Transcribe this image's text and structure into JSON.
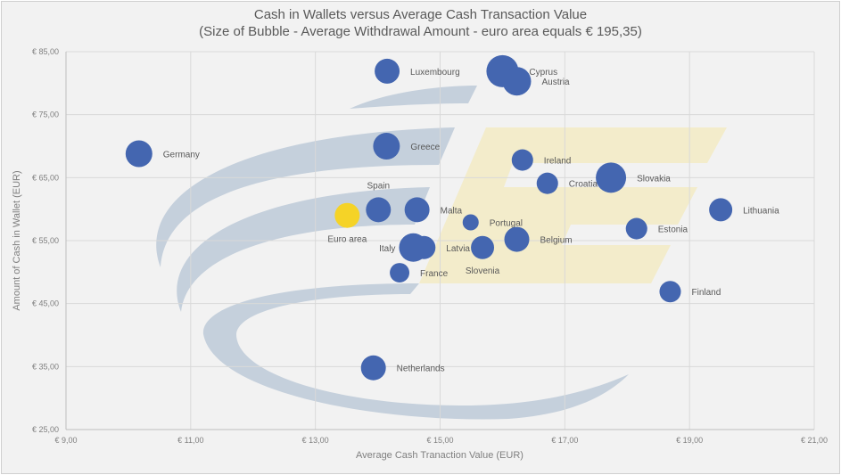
{
  "chart_data": {
    "type": "bubble",
    "title": "Cash in Wallets versus Average Cash Transaction Value",
    "subtitle": "(Size of Bubble - Average Withdrawal Amount - euro area equals € 195,35)",
    "xlabel": "Average Cash Tranaction Value (EUR)",
    "ylabel": "Amount of Cash in Wallet (EUR)",
    "xlim": [
      9,
      21
    ],
    "ylim": [
      25,
      85
    ],
    "xticks": [
      9,
      11,
      13,
      15,
      17,
      19,
      21
    ],
    "xtick_labels": [
      "€ 9,00",
      "€ 11,00",
      "€ 13,00",
      "€ 15,00",
      "€ 17,00",
      "€ 19,00",
      "€ 21,00"
    ],
    "yticks": [
      25,
      35,
      45,
      55,
      65,
      75,
      85
    ],
    "ytick_labels": [
      "€ 25,00",
      "€ 35,00",
      "€ 45,00",
      "€ 55,00",
      "€ 65,00",
      "€ 75,00",
      "€ 85,00"
    ],
    "grid": true,
    "colors": {
      "country": "#4466b0",
      "euro_area": "#f5d327",
      "watermark_blue": "#c5d0dc",
      "watermark_yellow": "#f3eccb"
    },
    "points": [
      {
        "name": "Luxembourg",
        "x": 14.15,
        "y": 81.9,
        "size": 195,
        "label_pos": "right"
      },
      {
        "name": "Cyprus",
        "x": 16.0,
        "y": 81.9,
        "size": 323,
        "label_pos": "right"
      },
      {
        "name": "Austria",
        "x": 16.23,
        "y": 80.3,
        "size": 255,
        "label_pos": "right"
      },
      {
        "name": "Germany",
        "x": 10.17,
        "y": 68.8,
        "size": 224,
        "label_pos": "right"
      },
      {
        "name": "Greece",
        "x": 14.14,
        "y": 70.0,
        "size": 224,
        "label_pos": "right"
      },
      {
        "name": "Ireland",
        "x": 16.32,
        "y": 67.8,
        "size": 144,
        "label_pos": "right"
      },
      {
        "name": "Slovakia",
        "x": 17.74,
        "y": 65.0,
        "size": 288,
        "label_pos": "right"
      },
      {
        "name": "Croatia",
        "x": 16.72,
        "y": 64.1,
        "size": 144,
        "label_pos": "right"
      },
      {
        "name": "Spain",
        "x": 14.01,
        "y": 59.9,
        "size": 195,
        "label_pos": "above"
      },
      {
        "name": "Malta",
        "x": 14.63,
        "y": 59.9,
        "size": 195,
        "label_pos": "right"
      },
      {
        "name": "Euro area",
        "x": 13.51,
        "y": 59.0,
        "size": 195.35,
        "label_pos": "below",
        "highlight": true
      },
      {
        "name": "Portugal",
        "x": 15.49,
        "y": 57.9,
        "size": 81,
        "label_pos": "right"
      },
      {
        "name": "Lithuania",
        "x": 19.5,
        "y": 59.9,
        "size": 168,
        "label_pos": "right"
      },
      {
        "name": "Estonia",
        "x": 18.15,
        "y": 56.9,
        "size": 144,
        "label_pos": "right"
      },
      {
        "name": "Belgium",
        "x": 16.23,
        "y": 55.2,
        "size": 195,
        "label_pos": "right"
      },
      {
        "name": "Italy",
        "x": 14.57,
        "y": 53.9,
        "size": 255,
        "label_pos": "left"
      },
      {
        "name": "Latvia",
        "x": 14.74,
        "y": 53.9,
        "size": 168,
        "label_pos": "right"
      },
      {
        "name": "Slovenia",
        "x": 15.68,
        "y": 53.9,
        "size": 168,
        "label_pos": "below"
      },
      {
        "name": "France",
        "x": 14.35,
        "y": 49.9,
        "size": 120,
        "label_pos": "right"
      },
      {
        "name": "Finland",
        "x": 18.69,
        "y": 46.9,
        "size": 144,
        "label_pos": "right"
      },
      {
        "name": "Netherlands",
        "x": 13.93,
        "y": 34.8,
        "size": 195,
        "label_pos": "right"
      }
    ]
  }
}
